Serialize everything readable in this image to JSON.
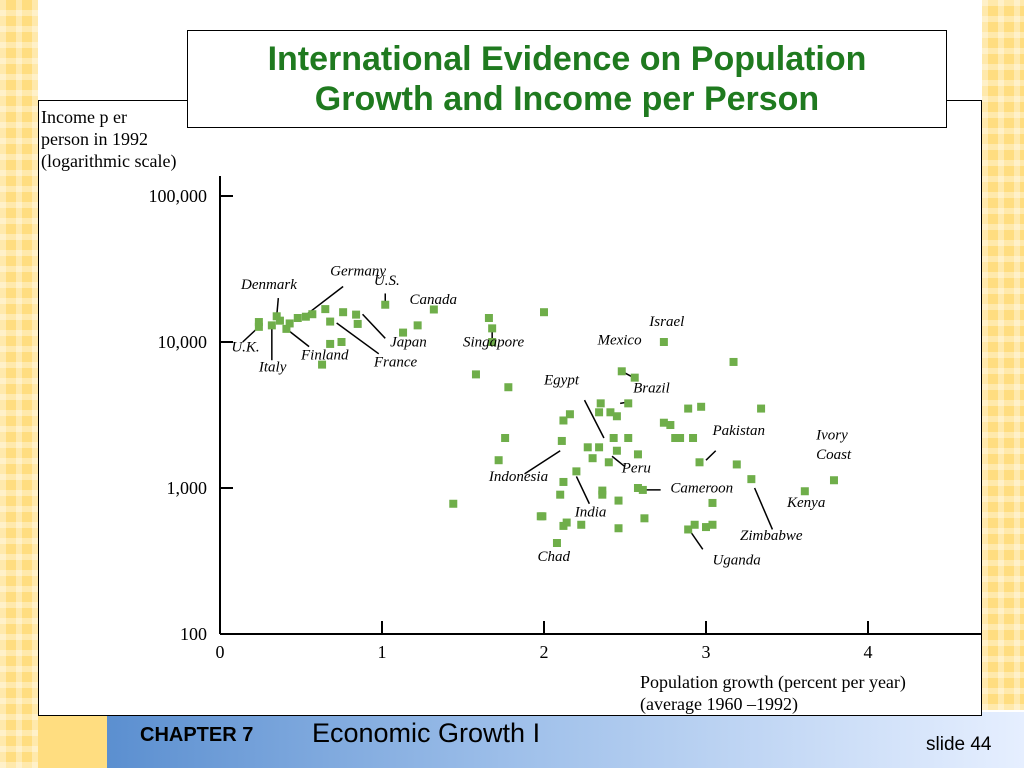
{
  "slide": {
    "title": "International Evidence on Population Growth and Income per Person",
    "chapter": "CHAPTER 7",
    "subject": "Economic Growth I",
    "slide_number": "slide 44"
  },
  "colors": {
    "marker": "#6fae4a",
    "title": "#1f7a1f",
    "accent": "#ffdd80"
  },
  "chart_data": {
    "type": "scatter",
    "title": "International Evidence on Population Growth and Income per Person",
    "ylabel_lines": [
      "Income p er",
      "person in 1992",
      "(logarithmic scale)"
    ],
    "xlabel_lines": [
      "Population growth (percent per year)",
      "(average 1960  –1992)"
    ],
    "y_scale": "log",
    "xlim": [
      0,
      4.7
    ],
    "ylim": [
      100,
      100000
    ],
    "x_ticks": [
      {
        "value": 0,
        "label": "0"
      },
      {
        "value": 1,
        "label": "1"
      },
      {
        "value": 2,
        "label": "2"
      },
      {
        "value": 3,
        "label": "3"
      },
      {
        "value": 4,
        "label": "4"
      }
    ],
    "y_ticks": [
      {
        "value": 100,
        "label": "100"
      },
      {
        "value": 1000,
        "label": "1,000"
      },
      {
        "value": 10000,
        "label": "10,000"
      },
      {
        "value": 100000,
        "label": "100,000"
      }
    ],
    "grid": false,
    "points": [
      {
        "x": 0.24,
        "y": 13700
      },
      {
        "x": 0.24,
        "y": 12700
      },
      {
        "x": 0.32,
        "y": 13000
      },
      {
        "x": 0.35,
        "y": 15000
      },
      {
        "x": 0.37,
        "y": 14000
      },
      {
        "x": 0.41,
        "y": 12300
      },
      {
        "x": 0.43,
        "y": 13400
      },
      {
        "x": 0.48,
        "y": 14600
      },
      {
        "x": 0.53,
        "y": 14900
      },
      {
        "x": 0.57,
        "y": 15500
      },
      {
        "x": 0.65,
        "y": 16800
      },
      {
        "x": 0.68,
        "y": 13800
      },
      {
        "x": 0.76,
        "y": 16000
      },
      {
        "x": 0.84,
        "y": 15400
      },
      {
        "x": 0.85,
        "y": 13300
      },
      {
        "x": 0.75,
        "y": 10000
      },
      {
        "x": 0.68,
        "y": 9700
      },
      {
        "x": 0.63,
        "y": 7000
      },
      {
        "x": 1.02,
        "y": 18000
      },
      {
        "x": 1.13,
        "y": 11600
      },
      {
        "x": 1.22,
        "y": 13000
      },
      {
        "x": 1.32,
        "y": 16700
      },
      {
        "x": 1.66,
        "y": 14600
      },
      {
        "x": 1.68,
        "y": 12400
      },
      {
        "x": 2.0,
        "y": 16000
      },
      {
        "x": 1.58,
        "y": 6000
      },
      {
        "x": 1.78,
        "y": 4900
      },
      {
        "x": 1.68,
        "y": 10000
      },
      {
        "x": 2.74,
        "y": 10000
      },
      {
        "x": 3.17,
        "y": 7300
      },
      {
        "x": 2.48,
        "y": 6300
      },
      {
        "x": 2.56,
        "y": 5700
      },
      {
        "x": 3.34,
        "y": 3500
      },
      {
        "x": 2.97,
        "y": 3600
      },
      {
        "x": 2.89,
        "y": 3500
      },
      {
        "x": 2.74,
        "y": 2800
      },
      {
        "x": 2.78,
        "y": 2700
      },
      {
        "x": 2.52,
        "y": 3800
      },
      {
        "x": 2.35,
        "y": 3800
      },
      {
        "x": 2.34,
        "y": 3300
      },
      {
        "x": 2.41,
        "y": 3300
      },
      {
        "x": 2.45,
        "y": 3100
      },
      {
        "x": 2.16,
        "y": 3200
      },
      {
        "x": 2.12,
        "y": 2900
      },
      {
        "x": 2.52,
        "y": 2200
      },
      {
        "x": 2.43,
        "y": 2200
      },
      {
        "x": 2.58,
        "y": 1700
      },
      {
        "x": 2.45,
        "y": 1800
      },
      {
        "x": 2.34,
        "y": 1900
      },
      {
        "x": 2.27,
        "y": 1900
      },
      {
        "x": 2.3,
        "y": 1600
      },
      {
        "x": 2.4,
        "y": 1500
      },
      {
        "x": 2.11,
        "y": 2100
      },
      {
        "x": 1.76,
        "y": 2200
      },
      {
        "x": 1.72,
        "y": 1550
      },
      {
        "x": 2.81,
        "y": 2200
      },
      {
        "x": 2.84,
        "y": 2200
      },
      {
        "x": 2.92,
        "y": 2200
      },
      {
        "x": 2.96,
        "y": 1500
      },
      {
        "x": 3.19,
        "y": 1450
      },
      {
        "x": 3.28,
        "y": 1150
      },
      {
        "x": 3.61,
        "y": 950
      },
      {
        "x": 3.79,
        "y": 1130
      },
      {
        "x": 2.2,
        "y": 1300
      },
      {
        "x": 2.12,
        "y": 1100
      },
      {
        "x": 2.58,
        "y": 1000
      },
      {
        "x": 2.61,
        "y": 970
      },
      {
        "x": 2.36,
        "y": 960
      },
      {
        "x": 2.36,
        "y": 900
      },
      {
        "x": 2.46,
        "y": 820
      },
      {
        "x": 2.1,
        "y": 900
      },
      {
        "x": 1.44,
        "y": 780
      },
      {
        "x": 1.98,
        "y": 640
      },
      {
        "x": 1.99,
        "y": 640
      },
      {
        "x": 2.14,
        "y": 580
      },
      {
        "x": 2.12,
        "y": 550
      },
      {
        "x": 2.23,
        "y": 560
      },
      {
        "x": 2.46,
        "y": 530
      },
      {
        "x": 2.62,
        "y": 620
      },
      {
        "x": 3.04,
        "y": 790
      },
      {
        "x": 2.93,
        "y": 560
      },
      {
        "x": 3.0,
        "y": 540
      },
      {
        "x": 3.04,
        "y": 560
      },
      {
        "x": 2.89,
        "y": 520
      },
      {
        "x": 2.08,
        "y": 420
      }
    ],
    "annotations": [
      {
        "text": "Germany",
        "x": 0.68,
        "y": 28500,
        "line": [
          [
            0.52,
            15000
          ],
          [
            0.76,
            24000
          ]
        ]
      },
      {
        "text": "Denmark",
        "x": 0.13,
        "y": 23000,
        "line": [
          [
            0.35,
            15000
          ],
          [
            0.36,
            20000
          ]
        ]
      },
      {
        "text": "U.S.",
        "x": 0.95,
        "y": 24500,
        "line": [
          [
            1.02,
            18000
          ],
          [
            1.02,
            21500
          ]
        ]
      },
      {
        "text": "Canada",
        "x": 1.17,
        "y": 18200
      },
      {
        "text": "Japan",
        "x": 1.05,
        "y": 9300,
        "line": [
          [
            0.88,
            15500
          ],
          [
            1.02,
            10600
          ]
        ]
      },
      {
        "text": "Finland",
        "x": 0.5,
        "y": 7600,
        "line": [
          [
            0.41,
            12300
          ],
          [
            0.55,
            9300
          ]
        ]
      },
      {
        "text": "France",
        "x": 0.95,
        "y": 6800,
        "line": [
          [
            0.72,
            13500
          ],
          [
            0.98,
            8300
          ]
        ]
      },
      {
        "text": "U.K.",
        "x": 0.07,
        "y": 8600,
        "line": [
          [
            0.14,
            10000
          ],
          [
            0.24,
            12700
          ]
        ]
      },
      {
        "text": "Italy",
        "x": 0.24,
        "y": 6300,
        "line": [
          [
            0.32,
            13000
          ],
          [
            0.32,
            7500
          ]
        ]
      },
      {
        "text": "Singapore",
        "x": 1.5,
        "y": 9300,
        "line": [
          [
            1.68,
            12400
          ],
          [
            1.68,
            10400
          ]
        ]
      },
      {
        "text": "Mexico",
        "x": 2.33,
        "y": 9600,
        "line": [
          [
            2.48,
            6300
          ],
          [
            2.58,
            5500
          ]
        ]
      },
      {
        "text": "Israel",
        "x": 2.65,
        "y": 12900
      },
      {
        "text": "Egypt",
        "x": 2.0,
        "y": 5100,
        "line": [
          [
            2.25,
            4000
          ],
          [
            2.37,
            2200
          ]
        ]
      },
      {
        "text": "Brazil",
        "x": 2.55,
        "y": 4500,
        "line": [
          [
            2.47,
            3800
          ],
          [
            2.53,
            3900
          ]
        ]
      },
      {
        "text": "Pakistan",
        "x": 3.04,
        "y": 2300,
        "line": [
          [
            3.0,
            1550
          ],
          [
            3.06,
            1800
          ]
        ]
      },
      {
        "text": "Ivory",
        "x": 3.68,
        "y": 2150
      },
      {
        "text": "Coast",
        "x": 3.68,
        "y": 1580
      },
      {
        "text": "Indonesia",
        "x": 1.66,
        "y": 1120,
        "line": [
          [
            1.88,
            1250
          ],
          [
            2.1,
            1800
          ]
        ]
      },
      {
        "text": "Peru",
        "x": 2.48,
        "y": 1280,
        "line": [
          [
            2.42,
            1650
          ],
          [
            2.5,
            1400
          ]
        ]
      },
      {
        "text": "Cameroon",
        "x": 2.78,
        "y": 930,
        "line": [
          [
            2.61,
            970
          ],
          [
            2.72,
            970
          ]
        ]
      },
      {
        "text": "India",
        "x": 2.19,
        "y": 640,
        "line": [
          [
            2.2,
            1200
          ],
          [
            2.28,
            780
          ]
        ]
      },
      {
        "text": "Kenya",
        "x": 3.5,
        "y": 740
      },
      {
        "text": "Zimbabwe",
        "x": 3.21,
        "y": 440,
        "line": [
          [
            3.3,
            1000
          ],
          [
            3.41,
            520
          ]
        ]
      },
      {
        "text": "Chad",
        "x": 1.96,
        "y": 315
      },
      {
        "text": "Uganda",
        "x": 3.04,
        "y": 300,
        "line": [
          [
            2.89,
            530
          ],
          [
            2.98,
            380
          ]
        ]
      }
    ]
  }
}
